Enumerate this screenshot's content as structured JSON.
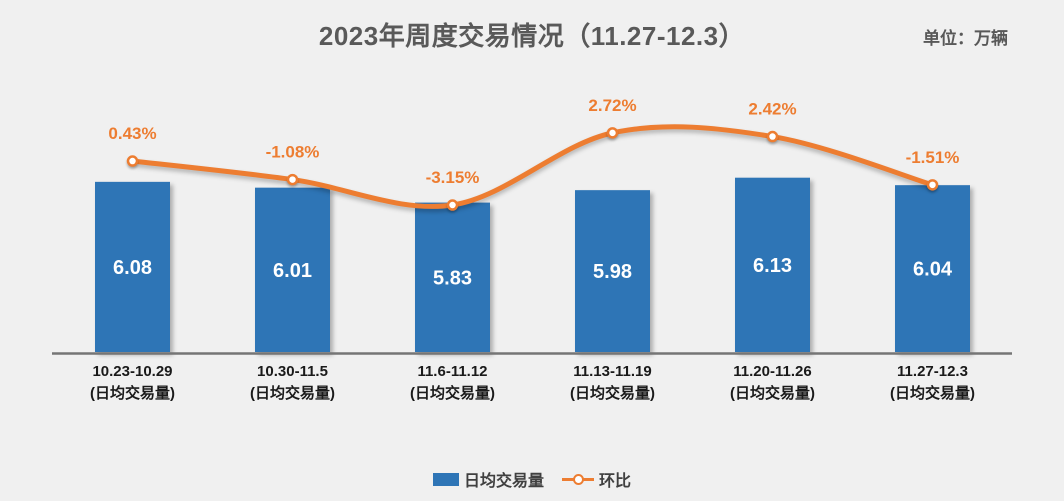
{
  "header": {
    "title": "2023年周度交易情况（11.27-12.3）",
    "unit_label": "单位：万辆"
  },
  "colors": {
    "background": "#F0F0F0",
    "title_text": "#595959",
    "bar_fill": "#2E75B6",
    "line_stroke": "#ED7D31",
    "bar_value_text": "#FFFFFF",
    "tick_text": "#1A1A1A",
    "axis_line": "#757575"
  },
  "chart_data": {
    "type": "bar",
    "combo": "bar+line",
    "title": "2023年周度交易情况（11.27-12.3）",
    "unit": "万辆",
    "categories": [
      "10.23-10.29",
      "10.30-11.5",
      "11.6-11.12",
      "11.13-11.19",
      "11.20-11.26",
      "11.27-12.3"
    ],
    "category_sublabel": "(日均交易量)",
    "series": [
      {
        "name": "日均交易量",
        "type": "bar",
        "color": "#2E75B6",
        "values": [
          6.08,
          6.01,
          5.83,
          5.98,
          6.13,
          6.04
        ],
        "value_labels": [
          "6.08",
          "6.01",
          "5.83",
          "5.98",
          "6.13",
          "6.04"
        ]
      },
      {
        "name": "环比",
        "type": "line",
        "color": "#ED7D31",
        "values": [
          0.43,
          -1.08,
          -3.15,
          2.72,
          2.42,
          -1.51
        ],
        "value_labels": [
          "0.43%",
          "-1.08%",
          "-3.15%",
          "2.72%",
          "2.42%",
          "-1.51%"
        ],
        "marker": "circle-white-fill",
        "smooth": true
      }
    ],
    "bar_axis_implied_min": 4.0,
    "grid": false,
    "legend_position": "bottom"
  }
}
